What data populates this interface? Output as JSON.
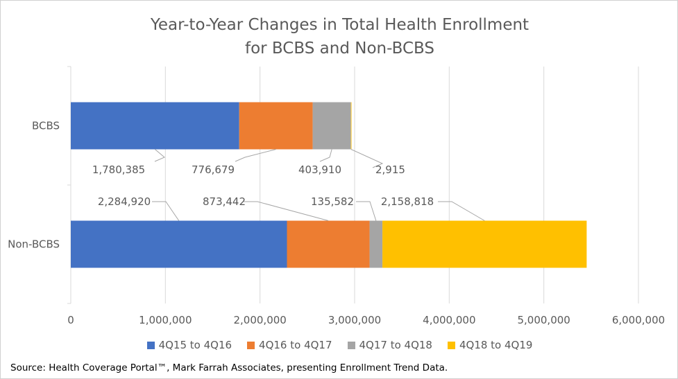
{
  "chart_data": {
    "type": "bar",
    "orientation": "horizontal",
    "stacked": true,
    "title_lines": [
      "Year-to-Year Changes in Total Health Enrollment",
      "for BCBS and Non-BCBS"
    ],
    "categories": [
      "BCBS",
      "Non-BCBS"
    ],
    "series": [
      {
        "name": "4Q15 to 4Q16",
        "color": "#4472C4",
        "values": [
          1780385,
          2284920
        ],
        "labels": [
          "1,780,385",
          "2,284,920"
        ]
      },
      {
        "name": "4Q16 to 4Q17",
        "color": "#ED7D31",
        "values": [
          776679,
          873442
        ],
        "labels": [
          "776,679",
          "873,442"
        ]
      },
      {
        "name": "4Q17 to 4Q18",
        "color": "#A5A5A5",
        "values": [
          403910,
          135582
        ],
        "labels": [
          "403,910",
          "135,582"
        ]
      },
      {
        "name": "4Q18 to 4Q19",
        "color": "#FFC000",
        "values": [
          2915,
          2158818
        ],
        "labels": [
          "2,915",
          "2,158,818"
        ]
      }
    ],
    "xlim": [
      0,
      6000000
    ],
    "x_ticks": [
      0,
      1000000,
      2000000,
      3000000,
      4000000,
      5000000,
      6000000
    ],
    "x_tick_labels": [
      "0",
      "1,000,000",
      "2,000,000",
      "3,000,000",
      "4,000,000",
      "5,000,000",
      "6,000,000"
    ],
    "grid": true,
    "legend_position": "bottom"
  },
  "source_text": "Source: Health Coverage Portal™, Mark Farrah Associates, presenting Enrollment Trend Data."
}
